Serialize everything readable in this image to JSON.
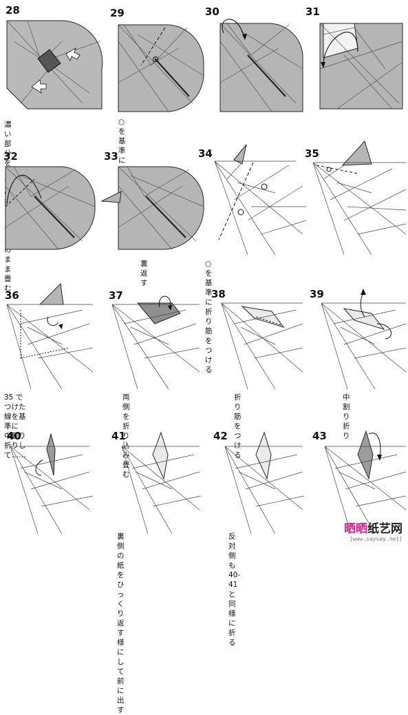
{
  "steps": [
    {
      "num": "28",
      "caption": "濃い部分をしずめ折りして\nそのまま畳む"
    },
    {
      "num": "29",
      "caption": "○を基準に折り筋をつける"
    },
    {
      "num": "30",
      "caption": ""
    },
    {
      "num": "31",
      "caption": ""
    },
    {
      "num": "32",
      "caption": ""
    },
    {
      "num": "33",
      "caption": "裏返す"
    },
    {
      "num": "34",
      "caption": "○を基準に折り筋をつける"
    },
    {
      "num": "35",
      "caption": ""
    },
    {
      "num": "36",
      "caption": "35 でつけた線を基準に\n中割り折りして……"
    },
    {
      "num": "37",
      "caption": "両側を折り込み畳む"
    },
    {
      "num": "38",
      "caption": "折り筋をつける"
    },
    {
      "num": "39",
      "caption": "中割り折り"
    },
    {
      "num": "40",
      "caption": ""
    },
    {
      "num": "41",
      "caption": "裏側の紙をひっくり返す\n様にして前に出す"
    },
    {
      "num": "42",
      "caption": "反対側も 40-41\nと同様に折る"
    },
    {
      "num": "43",
      "caption": ""
    }
  ],
  "watermark": {
    "title_part1": "晒晒",
    "title_part2": "纸艺网",
    "url": "[www.saysay.net]",
    "color1": "#e0218a",
    "color2": "#222222"
  }
}
